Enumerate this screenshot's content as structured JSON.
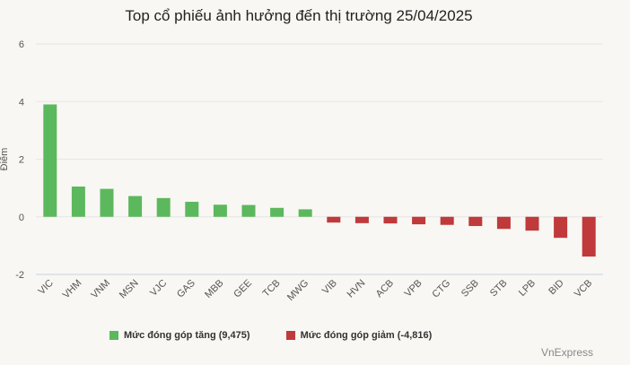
{
  "chart_data": {
    "type": "bar",
    "title": "Top cổ phiếu ảnh hưởng đến thị trường 25/04/2025",
    "ylabel": "Điểm",
    "ylim": [
      -2,
      6
    ],
    "yticks": [
      "6",
      "4",
      "2",
      "0",
      "-2"
    ],
    "grid": true,
    "legend_position": "bottom",
    "categories": [
      "VIC",
      "VHM",
      "VNM",
      "MSN",
      "VJC",
      "GAS",
      "MBB",
      "GEE",
      "TCB",
      "MWG",
      "VIB",
      "HVN",
      "ACB",
      "VPB",
      "CTG",
      "SSB",
      "STB",
      "LPB",
      "BID",
      "VCB"
    ],
    "values": [
      3.9,
      1.05,
      0.97,
      0.72,
      0.65,
      0.52,
      0.42,
      0.41,
      0.31,
      0.26,
      -0.2,
      -0.22,
      -0.23,
      -0.26,
      -0.28,
      -0.32,
      -0.42,
      -0.48,
      -0.73,
      -1.38
    ],
    "series": [
      {
        "name": "Mức đóng góp tăng (9,475)",
        "color": "#5cb85c"
      },
      {
        "name": "Mức đóng góp giảm (-4,816)",
        "color": "#c0393b"
      }
    ]
  },
  "source": "VnExpress"
}
